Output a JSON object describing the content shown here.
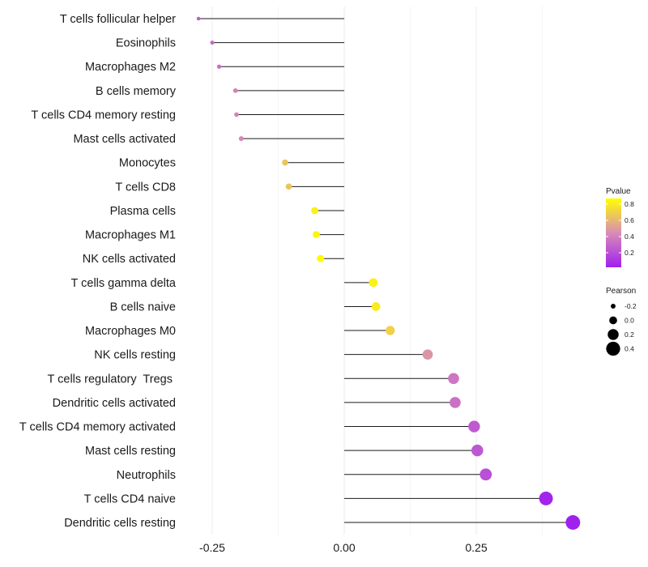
{
  "chart_data": {
    "type": "lollipop",
    "title": "",
    "xlabel": "",
    "ylabel": "",
    "xlim": [
      -0.28,
      0.48
    ],
    "xticks": [
      -0.25,
      0.0,
      0.25
    ],
    "xtick_labels": [
      "-0.25",
      "0.00",
      "0.25"
    ],
    "grid": "vertical-minor-and-major",
    "categories": [
      "T cells follicular helper",
      "Eosinophils",
      "Macrophages M2",
      "B cells memory",
      "T cells CD4 memory resting",
      "Mast cells activated",
      "Monocytes",
      "T cells CD8",
      "Plasma cells",
      "Macrophages M1",
      "NK cells activated",
      "T cells gamma delta",
      "B cells naive",
      "Macrophages M0",
      "NK cells resting",
      "T cells regulatory  Tregs ",
      "Dendritic cells activated",
      "T cells CD4 memory activated",
      "Mast cells resting",
      "Neutrophils",
      "T cells CD4 naive",
      "Dendritic cells resting"
    ],
    "pearson": [
      -0.276,
      -0.25,
      -0.237,
      -0.206,
      -0.204,
      -0.195,
      -0.112,
      -0.105,
      -0.056,
      -0.053,
      -0.045,
      0.055,
      0.06,
      0.087,
      0.158,
      0.207,
      0.21,
      0.246,
      0.252,
      0.268,
      0.382,
      0.433
    ],
    "pvalue": [
      0.25,
      0.3,
      0.33,
      0.4,
      0.41,
      0.42,
      0.65,
      0.66,
      0.82,
      0.83,
      0.85,
      0.82,
      0.8,
      0.7,
      0.48,
      0.36,
      0.34,
      0.25,
      0.24,
      0.21,
      0.04,
      0.02
    ],
    "legend": {
      "placement": "right",
      "color_title": "Pvalue",
      "color_ticks": [
        0.8,
        0.6,
        0.4,
        0.2
      ],
      "color_tick_labels": [
        "0.8",
        "0.6",
        "0.4",
        "0.2"
      ],
      "color_range": [
        0.02,
        0.87
      ],
      "color_low": "#a020f0",
      "color_mid": "#d98cb6",
      "color_high": "#ffff00",
      "size_title": "Pearson",
      "size_values": [
        -0.2,
        0.0,
        0.2,
        0.4
      ],
      "size_labels": [
        "-0.2",
        "0.0",
        "0.2",
        "0.4"
      ]
    }
  }
}
